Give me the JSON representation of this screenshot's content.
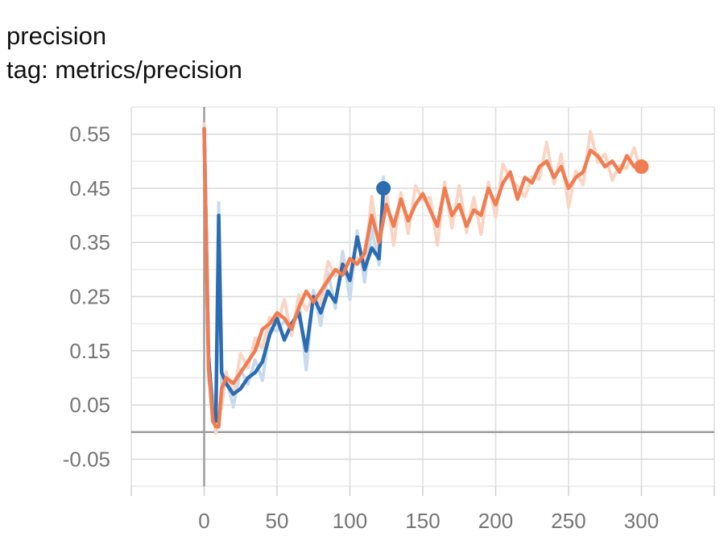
{
  "title": "precision",
  "subtitle": "tag: metrics/precision",
  "chart_data": {
    "type": "line",
    "title": "precision",
    "xlabel": "",
    "ylabel": "",
    "xlim": [
      -50,
      350
    ],
    "ylim": [
      -0.1,
      0.6
    ],
    "grid": true,
    "xticks": [
      0,
      50,
      100,
      150,
      200,
      250,
      300
    ],
    "xtick_labels": [
      "0",
      "50",
      "100",
      "150",
      "200",
      "250",
      "300"
    ],
    "yticks": [
      -0.05,
      0.05,
      0.15,
      0.25,
      0.35,
      0.45,
      0.55
    ],
    "ytick_labels": [
      "-0.05",
      "0.05",
      "0.15",
      "0.25",
      "0.35",
      "0.45",
      "0.55"
    ],
    "series": [
      {
        "color": "#2c6db2",
        "raw_color": "#c7daee",
        "x": [
          0,
          3,
          6,
          8,
          10,
          12,
          15,
          20,
          25,
          30,
          35,
          40,
          45,
          50,
          55,
          60,
          65,
          70,
          75,
          80,
          85,
          90,
          95,
          100,
          105,
          110,
          115,
          120,
          123
        ],
        "values": [
          0.56,
          0.14,
          0.03,
          0.02,
          0.4,
          0.11,
          0.09,
          0.07,
          0.08,
          0.1,
          0.11,
          0.13,
          0.18,
          0.21,
          0.17,
          0.2,
          0.22,
          0.15,
          0.25,
          0.22,
          0.26,
          0.24,
          0.31,
          0.28,
          0.36,
          0.3,
          0.34,
          0.32,
          0.45
        ]
      },
      {
        "color": "#f07d52",
        "raw_color": "#fbd5c4",
        "x": [
          0,
          3,
          6,
          8,
          10,
          12,
          15,
          20,
          25,
          30,
          35,
          40,
          45,
          50,
          55,
          60,
          65,
          70,
          75,
          80,
          85,
          90,
          95,
          100,
          105,
          110,
          115,
          120,
          125,
          130,
          135,
          140,
          145,
          150,
          155,
          160,
          165,
          170,
          175,
          180,
          185,
          190,
          195,
          200,
          205,
          210,
          215,
          220,
          225,
          230,
          235,
          240,
          245,
          250,
          255,
          260,
          265,
          270,
          275,
          280,
          285,
          290,
          295,
          300
        ],
        "values": [
          0.56,
          0.12,
          0.02,
          0.01,
          0.01,
          0.08,
          0.1,
          0.09,
          0.11,
          0.13,
          0.15,
          0.19,
          0.2,
          0.22,
          0.21,
          0.19,
          0.23,
          0.26,
          0.24,
          0.26,
          0.28,
          0.3,
          0.29,
          0.32,
          0.31,
          0.33,
          0.4,
          0.35,
          0.42,
          0.38,
          0.43,
          0.39,
          0.42,
          0.44,
          0.41,
          0.38,
          0.45,
          0.4,
          0.42,
          0.38,
          0.41,
          0.4,
          0.45,
          0.42,
          0.46,
          0.48,
          0.43,
          0.47,
          0.46,
          0.49,
          0.5,
          0.47,
          0.49,
          0.45,
          0.47,
          0.48,
          0.52,
          0.51,
          0.49,
          0.5,
          0.48,
          0.51,
          0.49,
          0.49
        ]
      }
    ]
  }
}
